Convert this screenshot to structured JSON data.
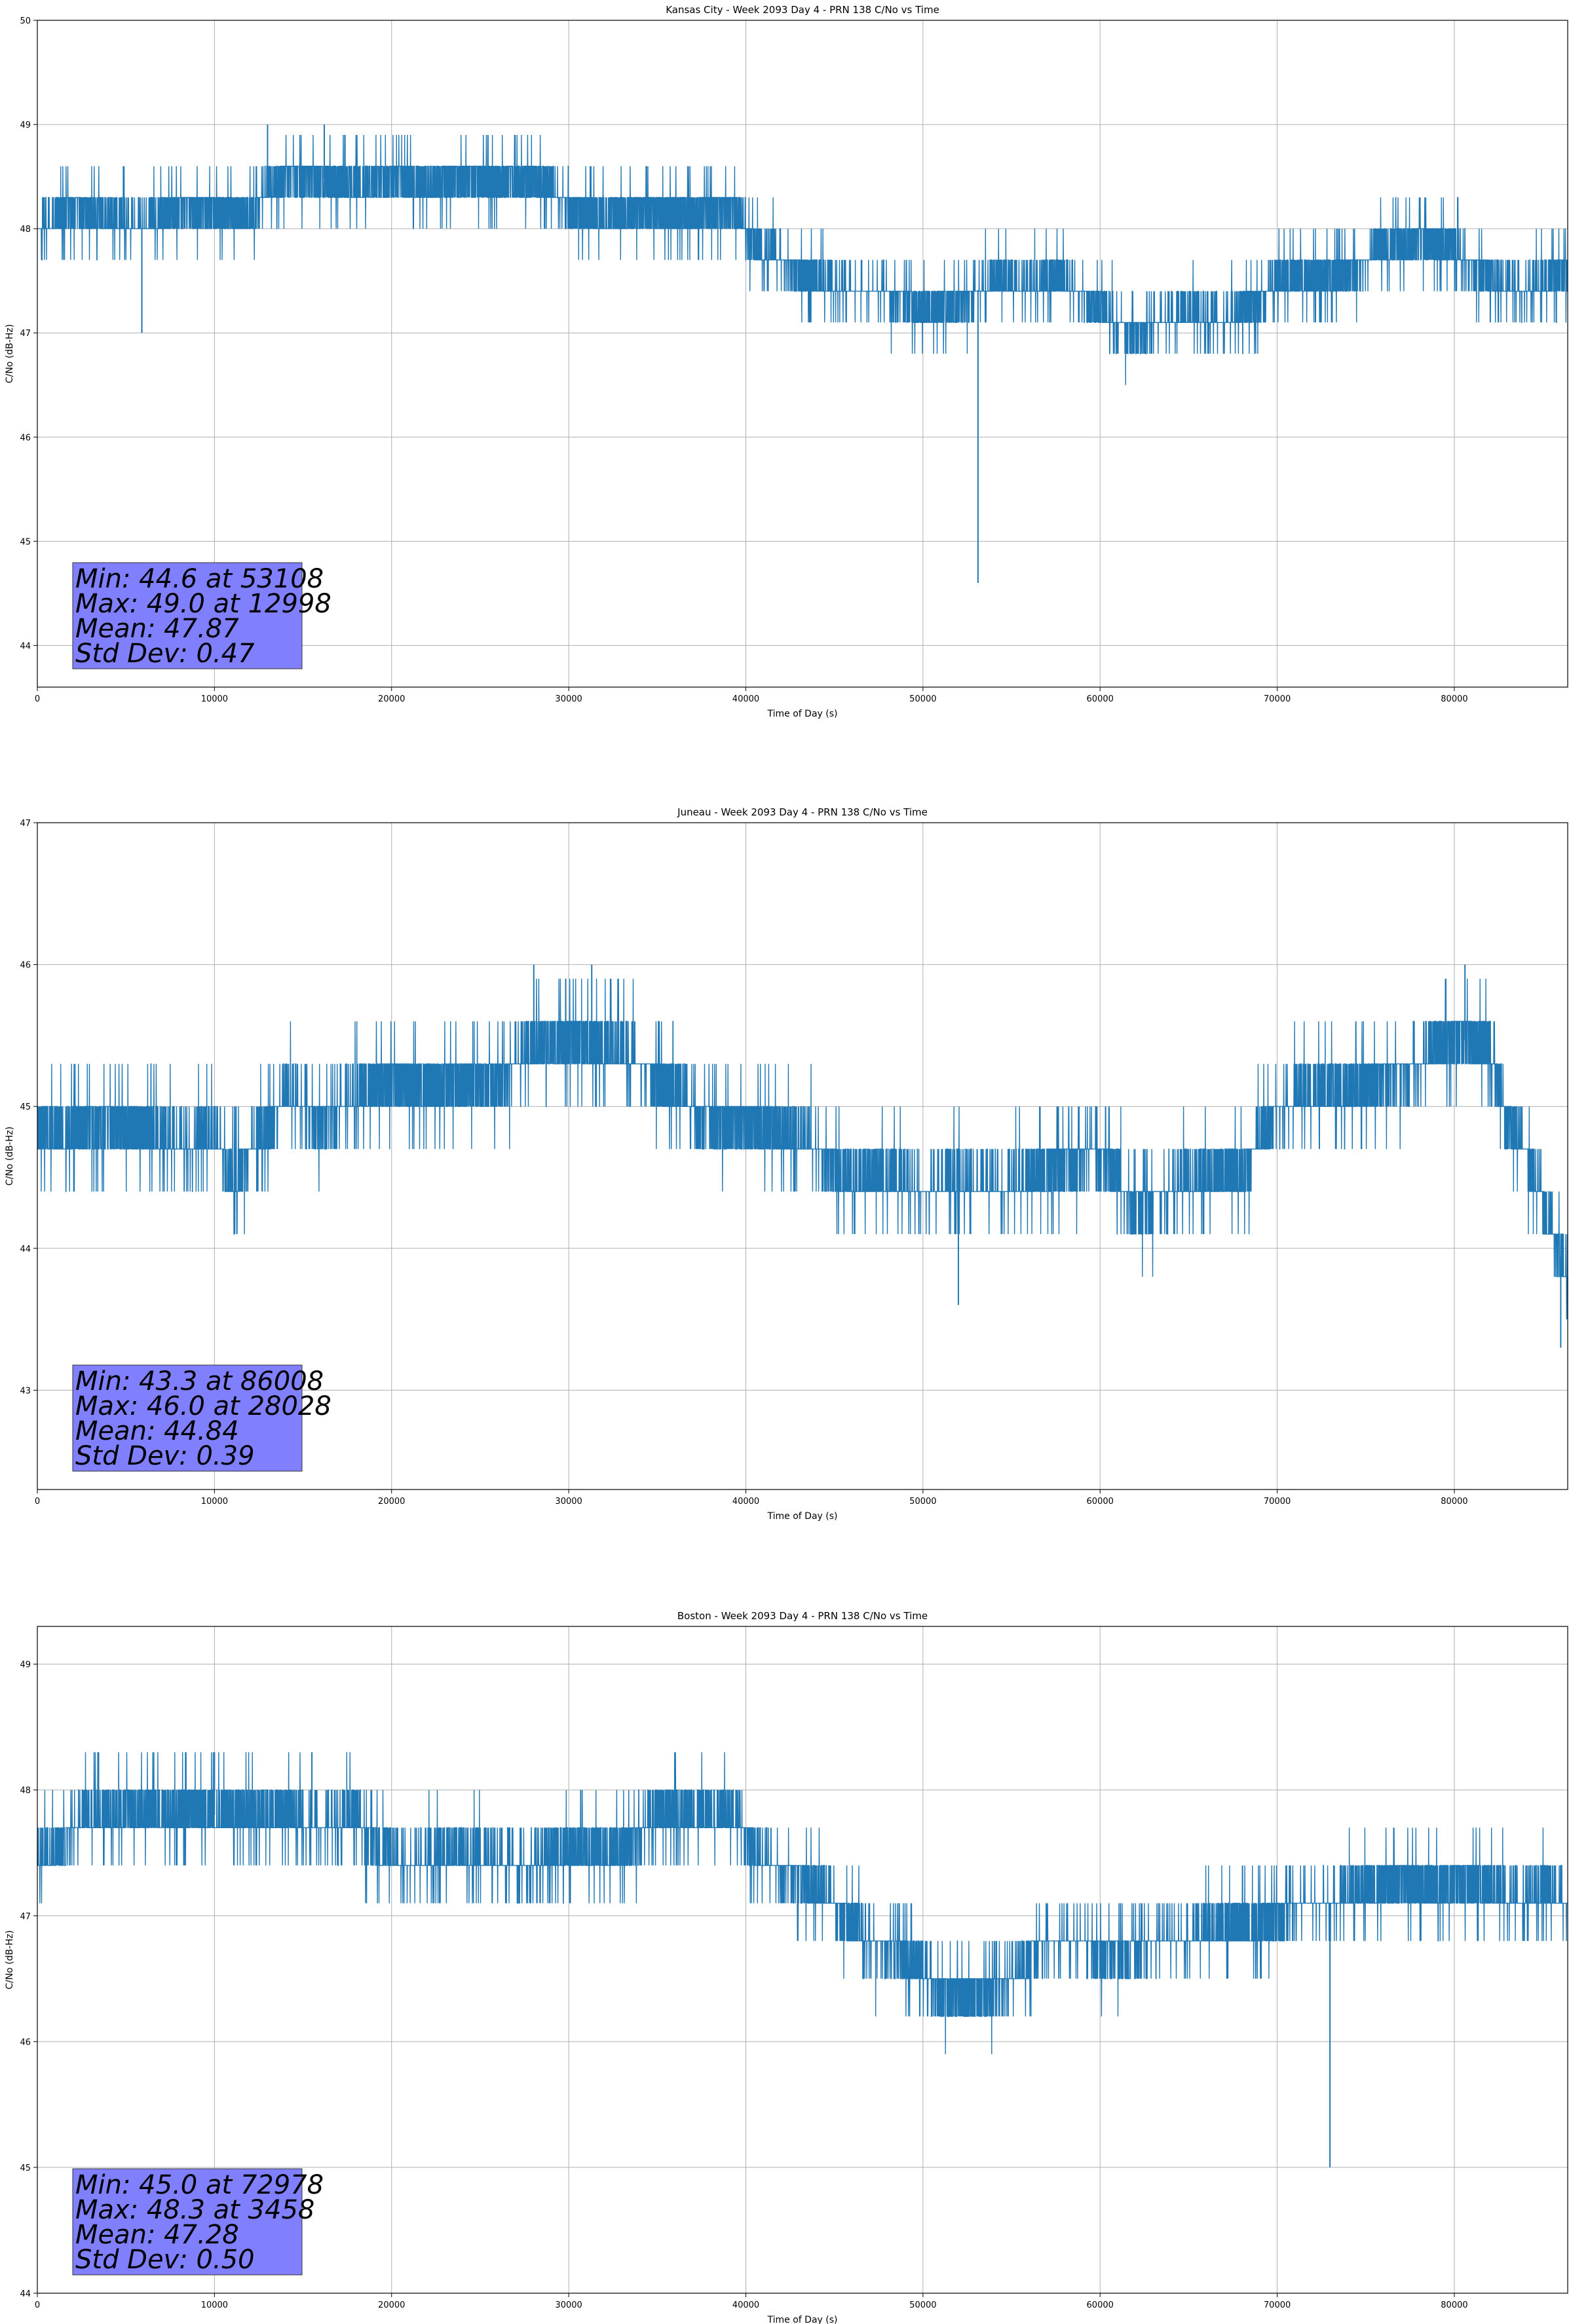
{
  "colors": {
    "series": "#1f77b4",
    "stats_box": "#8080ff",
    "grid": "#b0b0b0"
  },
  "chart_data": [
    {
      "type": "line",
      "title": "Kansas City - Week 2093 Day 4 - PRN 138 C/No vs Time",
      "xlabel": "Time of Day (s)",
      "ylabel": "C/No (dB-Hz)",
      "xlim": [
        0,
        86400
      ],
      "ylim": [
        43.6,
        50.0
      ],
      "xticks": [
        0,
        10000,
        20000,
        30000,
        40000,
        50000,
        60000,
        70000,
        80000
      ],
      "yticks": [
        44,
        45,
        46,
        47,
        48,
        49,
        50
      ],
      "grid": true,
      "series": [
        {
          "x": [
            0,
            2000,
            4000,
            6000,
            8000,
            10000,
            12000,
            13000,
            14000,
            16000,
            18000,
            20000,
            22000,
            24000,
            26000,
            28000,
            30000,
            32000,
            34000,
            36000,
            38000,
            39500,
            40500,
            42000,
            44000,
            46000,
            48000,
            50000,
            52000,
            54000,
            56000,
            58000,
            60000,
            62000,
            63500,
            65000,
            67000,
            69000,
            70000,
            72000,
            74000,
            76000,
            78000,
            80000,
            82000,
            84000,
            86400
          ],
          "y": [
            48.0,
            48.2,
            48.1,
            48.0,
            48.2,
            48.2,
            48.1,
            48.4,
            48.5,
            48.5,
            48.4,
            48.5,
            48.4,
            48.5,
            48.4,
            48.5,
            48.2,
            48.1,
            48.2,
            48.1,
            48.2,
            48.2,
            47.8,
            47.7,
            47.5,
            47.4,
            47.4,
            47.2,
            47.3,
            47.5,
            47.4,
            47.5,
            47.2,
            47.0,
            47.1,
            47.2,
            47.1,
            47.3,
            47.5,
            47.5,
            47.6,
            47.8,
            47.9,
            47.8,
            47.5,
            47.4,
            47.6
          ],
          "spikes": [
            {
              "x": 5900,
              "y": 47.0
            },
            {
              "x": 12998,
              "y": 49.0
            },
            {
              "x": 16200,
              "y": 49.0
            },
            {
              "x": 53108,
              "y": 44.6
            }
          ]
        }
      ],
      "stats": [
        "Min: 44.6 at 53108",
        "Max: 49.0 at 12998",
        "Mean: 47.87",
        "Std Dev: 0.47"
      ]
    },
    {
      "type": "line",
      "title": "Juneau - Week 2093 Day 4 - PRN 138 C/No vs Time",
      "xlabel": "Time of Day (s)",
      "ylabel": "C/No (dB-Hz)",
      "xlim": [
        0,
        86400
      ],
      "ylim": [
        42.3,
        47.0
      ],
      "xticks": [
        0,
        10000,
        20000,
        30000,
        40000,
        50000,
        60000,
        70000,
        80000
      ],
      "yticks": [
        43,
        44,
        45,
        46,
        47
      ],
      "grid": true,
      "series": [
        {
          "x": [
            0,
            2000,
            4000,
            6000,
            8000,
            10000,
            11000,
            12000,
            13000,
            14000,
            16000,
            18000,
            20000,
            22000,
            24000,
            26000,
            28000,
            30000,
            32000,
            34000,
            36000,
            38000,
            40000,
            42000,
            44000,
            46000,
            48000,
            50000,
            52000,
            54000,
            56000,
            58000,
            60000,
            62000,
            64000,
            66000,
            68000,
            70000,
            72000,
            74000,
            76000,
            78000,
            80000,
            82000,
            83000,
            84000,
            85000,
            86400
          ],
          "y": [
            44.8,
            44.8,
            44.9,
            44.8,
            44.7,
            44.8,
            44.5,
            44.7,
            44.8,
            45.1,
            44.9,
            45.1,
            45.2,
            45.1,
            45.2,
            45.2,
            45.4,
            45.5,
            45.4,
            45.3,
            45.1,
            44.9,
            44.9,
            44.8,
            44.7,
            44.5,
            44.5,
            44.4,
            44.5,
            44.4,
            44.5,
            44.6,
            44.7,
            44.3,
            44.4,
            44.5,
            44.5,
            45.0,
            45.1,
            45.1,
            45.2,
            45.3,
            45.5,
            45.4,
            44.9,
            44.7,
            44.3,
            43.8
          ],
          "spikes": [
            {
              "x": 28028,
              "y": 46.0
            },
            {
              "x": 31300,
              "y": 46.0
            },
            {
              "x": 52000,
              "y": 43.6
            },
            {
              "x": 80600,
              "y": 46.0
            },
            {
              "x": 86008,
              "y": 43.3
            }
          ]
        }
      ],
      "stats": [
        "Min: 43.3 at 86008",
        "Max: 46.0 at 28028",
        "Mean: 44.84",
        "Std Dev: 0.39"
      ]
    },
    {
      "type": "line",
      "title": "Boston - Week 2093 Day 4 - PRN 138 C/No vs Time",
      "xlabel": "Time of Day (s)",
      "ylabel": "C/No (dB-Hz)",
      "xlim": [
        0,
        86400
      ],
      "ylim": [
        44.0,
        49.3
      ],
      "xticks": [
        0,
        10000,
        20000,
        30000,
        40000,
        50000,
        60000,
        70000,
        80000
      ],
      "yticks": [
        44,
        45,
        46,
        47,
        48,
        49
      ],
      "grid": true,
      "series": [
        {
          "x": [
            0,
            1500,
            3000,
            5000,
            8000,
            10000,
            12000,
            14000,
            16000,
            18000,
            19500,
            21000,
            24000,
            27000,
            30000,
            33000,
            35000,
            37000,
            39500,
            40500,
            43000,
            45000,
            47000,
            49000,
            51000,
            53000,
            55000,
            57000,
            59000,
            61000,
            63000,
            65000,
            67000,
            69000,
            71000,
            73000,
            75000,
            77000,
            79000,
            81000,
            83000,
            85000,
            86400
          ],
          "y": [
            47.4,
            47.6,
            47.8,
            47.8,
            47.8,
            47.8,
            47.8,
            47.8,
            47.7,
            47.8,
            47.5,
            47.4,
            47.5,
            47.4,
            47.5,
            47.5,
            47.8,
            47.8,
            47.8,
            47.5,
            47.3,
            47.1,
            46.8,
            46.7,
            46.4,
            46.4,
            46.5,
            46.8,
            46.8,
            46.7,
            46.8,
            46.8,
            46.9,
            46.9,
            47.1,
            47.1,
            47.2,
            47.3,
            47.2,
            47.3,
            47.1,
            47.2,
            47.1
          ],
          "spikes": [
            {
              "x": 3458,
              "y": 48.3
            },
            {
              "x": 10000,
              "y": 48.3
            },
            {
              "x": 15500,
              "y": 48.3
            },
            {
              "x": 72978,
              "y": 45.0
            }
          ]
        }
      ],
      "stats": [
        "Min: 45.0 at 72978",
        "Max: 48.3 at 3458",
        "Mean: 47.28",
        "Std Dev: 0.50"
      ]
    }
  ]
}
